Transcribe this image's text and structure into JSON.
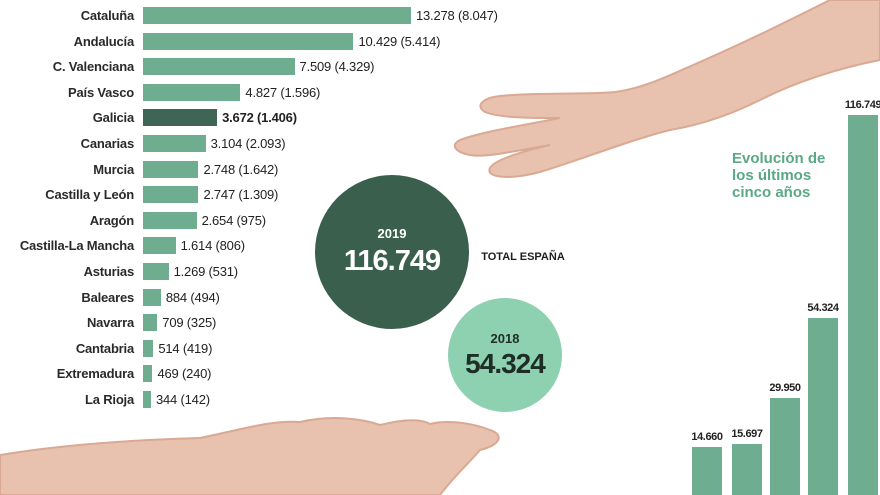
{
  "chart_data": [
    {
      "type": "bar",
      "orientation": "horizontal",
      "highlight": "Galicia",
      "colors": {
        "bar": "#6fad91",
        "highlight": "#3f6654"
      },
      "categories": [
        "Cataluña",
        "Andalucía",
        "C. Valenciana",
        "País Vasco",
        "Galicia",
        "Canarias",
        "Murcia",
        "Castilla y León",
        "Aragón",
        "Castilla-La Mancha",
        "Asturias",
        "Baleares",
        "Navarra",
        "Cantabria",
        "Extremadura",
        "La Rioja"
      ],
      "series": [
        {
          "values": [
            13278,
            10429,
            7509,
            4827,
            3672,
            3104,
            2748,
            2747,
            2654,
            1614,
            1269,
            884,
            709,
            514,
            469,
            344
          ]
        },
        {
          "values": [
            8047,
            5414,
            4329,
            1596,
            1406,
            2093,
            1642,
            1309,
            975,
            806,
            531,
            494,
            325,
            419,
            240,
            142
          ]
        }
      ],
      "value_labels": [
        "13.278 (8.047)",
        "10.429 (5.414)",
        "7.509 (4.329)",
        "4.827 (1.596)",
        "3.672 (1.406)",
        "3.104 (2.093)",
        "2.748 (1.642)",
        "2.747 (1.309)",
        "2.654 (975)",
        "1.614 (806)",
        "1.269 (531)",
        "884 (494)",
        "709 (325)",
        "514 (419)",
        "469 (240)",
        "344 (142)"
      ]
    },
    {
      "type": "bar",
      "title": "Evolución de los últimos cinco años",
      "values": [
        14660,
        15697,
        29950,
        54324,
        116749
      ],
      "value_labels": [
        "14.660",
        "15.697",
        "29.950",
        "54.324",
        "116.749"
      ],
      "color": "#6fad91"
    }
  ],
  "totals": {
    "label": "TOTAL ESPAÑA",
    "current": {
      "year": "2019",
      "value": "116.749",
      "color": "#3a5f4c"
    },
    "previous": {
      "year": "2018",
      "value": "54.324",
      "color": "#8ed1b1"
    }
  },
  "decor": {
    "hand_color": "#e8c2ae",
    "shadow_color": "#d9a994"
  }
}
